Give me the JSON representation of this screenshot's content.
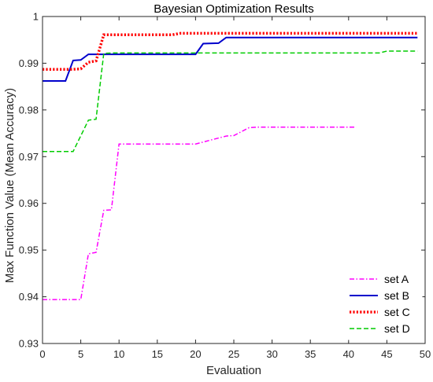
{
  "chart_data": {
    "type": "line",
    "title": "Bayesian Optimization Results",
    "xlabel": "Evaluation",
    "ylabel": "Max Function Value (Mean Accuracy)",
    "xlim": [
      0,
      50
    ],
    "ylim": [
      0.93,
      1.0
    ],
    "xticks": [
      0,
      5,
      10,
      15,
      20,
      25,
      30,
      35,
      40,
      45,
      50
    ],
    "yticks": [
      0.93,
      0.94,
      0.95,
      0.96,
      0.97,
      0.98,
      0.99,
      1.0
    ],
    "xtick_labels": [
      "0",
      "5",
      "10",
      "15",
      "20",
      "25",
      "30",
      "35",
      "40",
      "45",
      "50"
    ],
    "ytick_labels": [
      "0.93",
      "0.94",
      "0.95",
      "0.96",
      "0.97",
      "0.98",
      "0.99",
      "1"
    ],
    "grid": false,
    "legend_position": "bottom-right",
    "series": [
      {
        "name": "set A",
        "color": "#ff00ff",
        "style": "dashdot",
        "x": [
          0,
          5,
          6,
          7,
          8,
          9,
          10,
          20,
          24,
          25,
          27,
          28,
          41
        ],
        "y": [
          0.9394,
          0.9394,
          0.9492,
          0.9495,
          0.9585,
          0.9586,
          0.9727,
          0.9727,
          0.9744,
          0.9745,
          0.9762,
          0.9763,
          0.9763
        ]
      },
      {
        "name": "set B",
        "color": "#0000cc",
        "style": "solid",
        "x": [
          0,
          3,
          4,
          5,
          6,
          8,
          20,
          21,
          23,
          24,
          49
        ],
        "y": [
          0.9862,
          0.9862,
          0.9906,
          0.9907,
          0.9919,
          0.9919,
          0.9919,
          0.9942,
          0.9943,
          0.9955,
          0.9955
        ]
      },
      {
        "name": "set C",
        "color": "#ff0000",
        "style": "dotted",
        "x": [
          0,
          4,
          5,
          6,
          7,
          8,
          17,
          18,
          49
        ],
        "y": [
          0.9887,
          0.9887,
          0.9888,
          0.9902,
          0.9905,
          0.9961,
          0.9961,
          0.9964,
          0.9964
        ]
      },
      {
        "name": "set D",
        "color": "#00cc00",
        "style": "dashed",
        "x": [
          0,
          4,
          6,
          7,
          8,
          9,
          44,
          45,
          49
        ],
        "y": [
          0.9711,
          0.9711,
          0.9778,
          0.978,
          0.9921,
          0.9922,
          0.9922,
          0.9926,
          0.9926
        ]
      }
    ]
  }
}
